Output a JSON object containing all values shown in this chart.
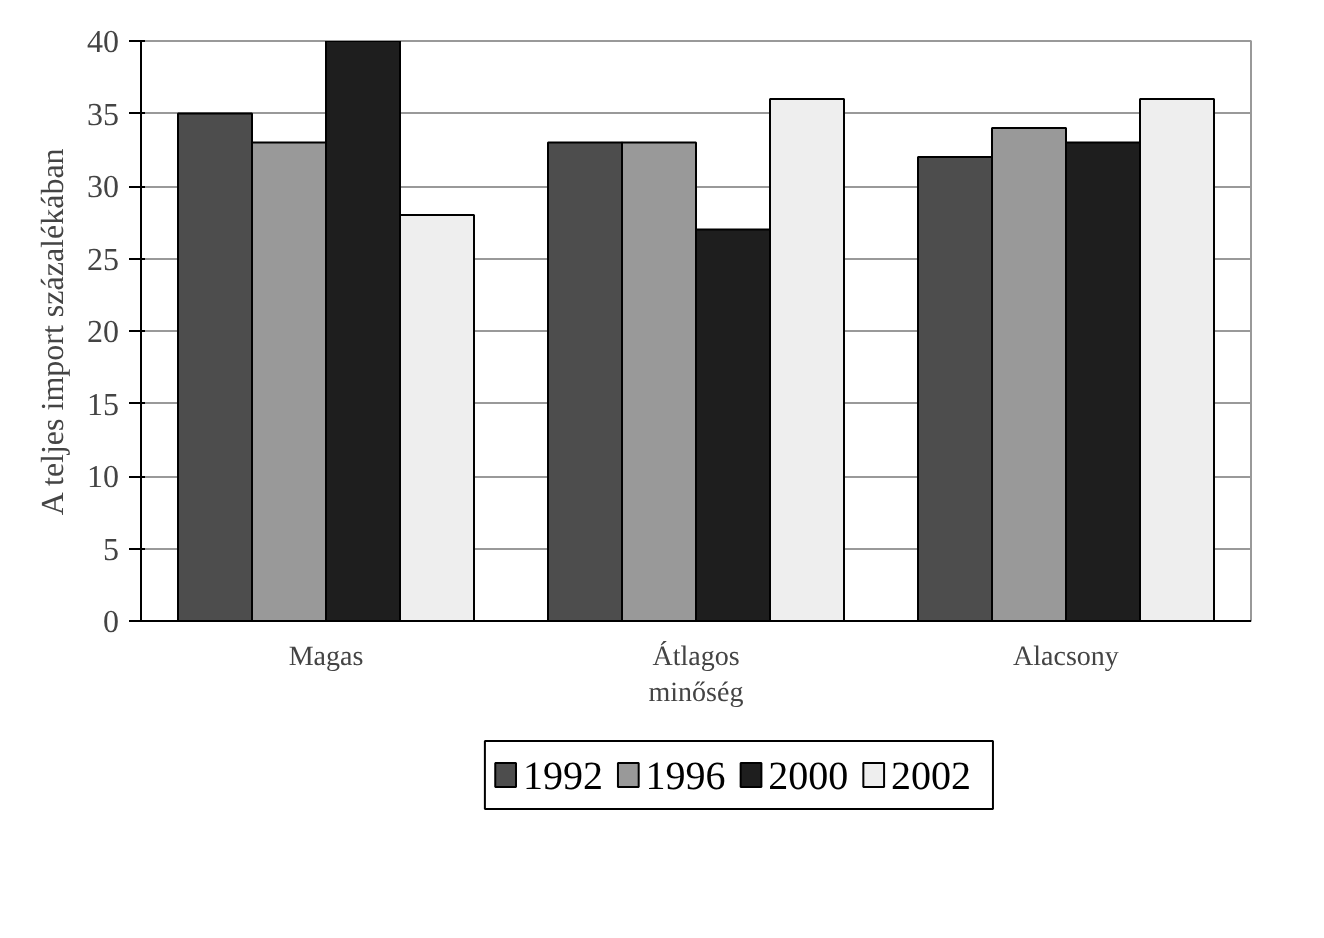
{
  "chart_data": {
    "type": "bar",
    "ylabel": "A teljes import százalékában",
    "categories": [
      "Magas",
      "Átlagos\nminőség",
      "Alacsony"
    ],
    "series": [
      {
        "name": "1992",
        "color": "#4d4d4d",
        "values": [
          35,
          33,
          32
        ]
      },
      {
        "name": "1996",
        "color": "#999999",
        "values": [
          33,
          33,
          34
        ]
      },
      {
        "name": "2000",
        "color": "#1e1e1e",
        "values": [
          40,
          27,
          33
        ]
      },
      {
        "name": "2002",
        "color": "#eeeeee",
        "values": [
          28,
          36,
          36
        ]
      }
    ],
    "ylim": [
      0,
      40
    ],
    "yticks": [
      0,
      5,
      10,
      15,
      20,
      25,
      30,
      35,
      40
    ],
    "grid": "y",
    "legend": "bottom"
  }
}
